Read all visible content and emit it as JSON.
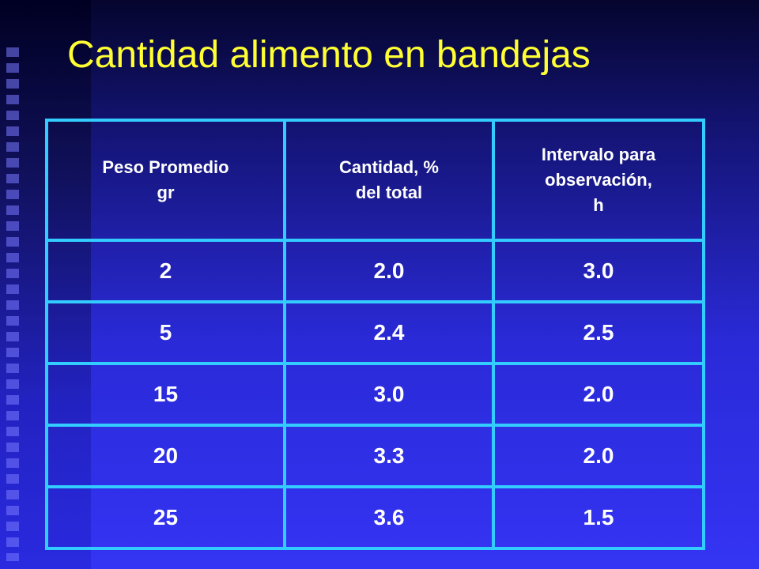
{
  "title": "Cantidad alimento en bandejas",
  "table": {
    "headers": [
      [
        "Peso Promedio",
        "gr"
      ],
      [
        "Cantidad, %",
        "del total"
      ],
      [
        "Intervalo para",
        "observación,",
        "h"
      ]
    ],
    "rows": [
      [
        "2",
        "2.0",
        "3.0"
      ],
      [
        "5",
        "2.4",
        "2.5"
      ],
      [
        "15",
        "3.0",
        "2.0"
      ],
      [
        "20",
        "3.3",
        "2.0"
      ],
      [
        "25",
        "3.6",
        "1.5"
      ]
    ]
  }
}
